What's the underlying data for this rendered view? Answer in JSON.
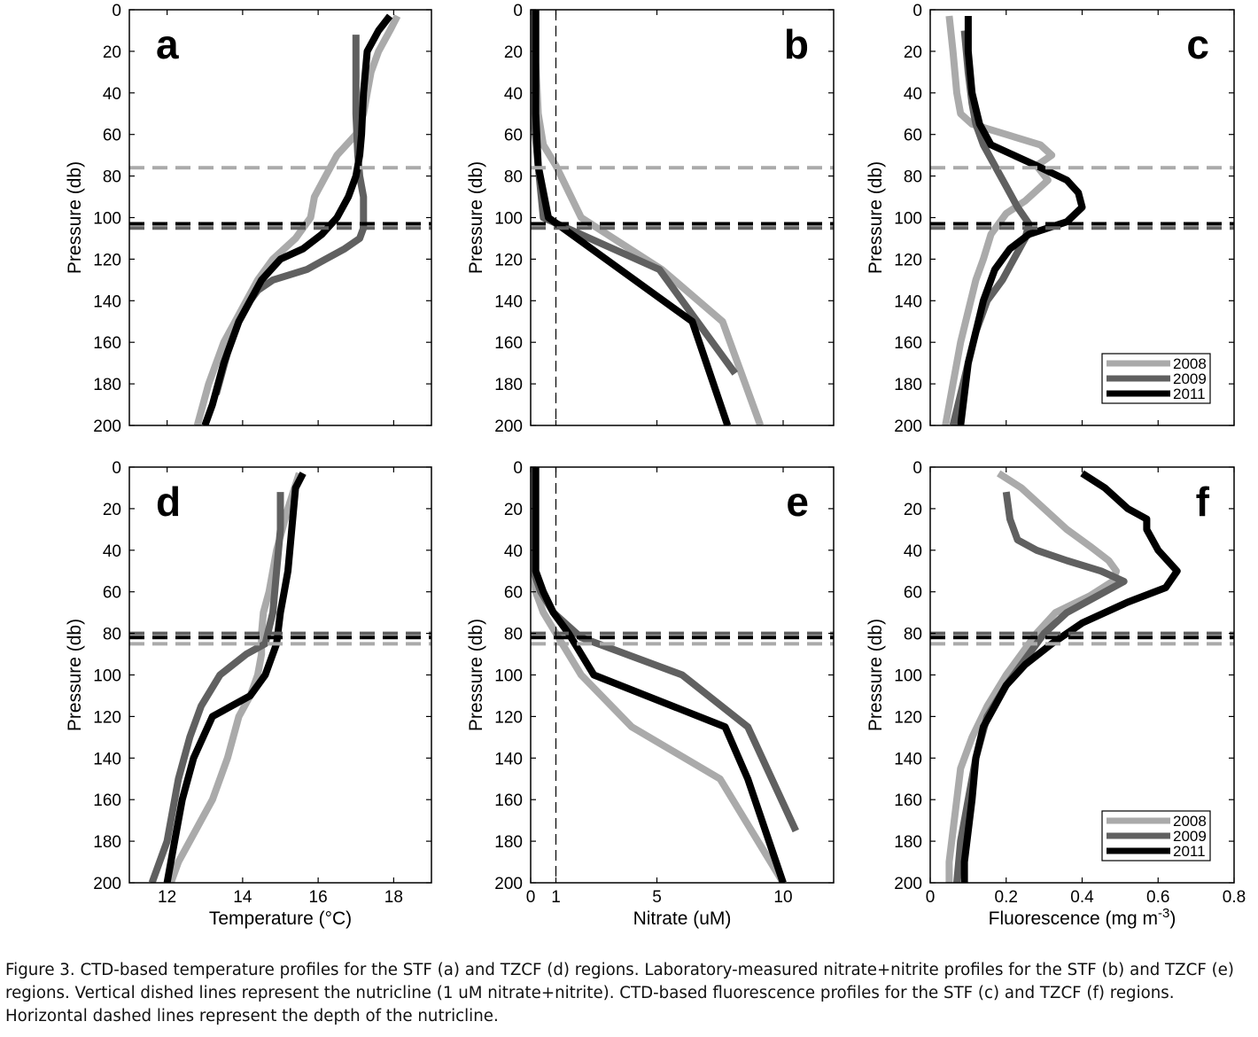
{
  "colors": {
    "y2008": "#aaaaaa",
    "y2009": "#606060",
    "y2011": "#000000"
  },
  "legend": [
    "2008",
    "2009",
    "2011"
  ],
  "caption": "Figure 3. CTD-based temperature profiles for the STF (a) and TZCF (d) regions. Laboratory-measured nitrate+nitrite profiles for the STF (b) and TZCF (e) regions. Vertical dished lines represent the nutricline (1 uM nitrate+nitrite). CTD-based fluorescence profiles for the STF (c) and TZCF (f) regions. Horizontal dashed lines represent the depth of the nutricline.",
  "chart_data": [
    {
      "panel": "a",
      "type": "line",
      "xlabel": "",
      "ylabel": "Pressure (db)",
      "xlim": [
        11,
        19
      ],
      "ylim": [
        200,
        0
      ],
      "xticks": [
        12,
        14,
        16,
        18
      ],
      "show_xticklabels": false,
      "yticks": [
        0,
        20,
        40,
        60,
        80,
        100,
        120,
        140,
        160,
        180,
        200
      ],
      "series": [
        {
          "name": "2008",
          "x": [
            18.1,
            17.9,
            17.6,
            17.4,
            17.3,
            17.2,
            17.0,
            16.5,
            16.2,
            15.9,
            15.8,
            15.4,
            14.8,
            14.4,
            14.1,
            13.8,
            13.5,
            13.1,
            12.8
          ],
          "y": [
            3,
            10,
            20,
            30,
            40,
            50,
            60,
            70,
            80,
            90,
            100,
            110,
            120,
            130,
            140,
            150,
            160,
            180,
            200
          ]
        },
        {
          "name": "2009",
          "x": [
            17.0,
            17.0,
            17.0,
            17.05,
            17.1,
            17.2,
            17.2,
            17.2,
            17.1,
            16.7,
            16.2,
            15.7,
            14.8,
            14.4,
            14.2,
            13.9,
            13.6,
            13.3
          ],
          "y": [
            12,
            30,
            50,
            70,
            80,
            90,
            100,
            105,
            110,
            115,
            120,
            125,
            130,
            135,
            140,
            150,
            165,
            185
          ]
        },
        {
          "name": "2011",
          "x": [
            17.9,
            17.6,
            17.3,
            17.2,
            17.15,
            17.1,
            17.0,
            16.8,
            16.5,
            16.1,
            15.6,
            15.0,
            14.5,
            14.2,
            13.9,
            13.5,
            13.2,
            13.0
          ],
          "y": [
            3,
            10,
            20,
            40,
            60,
            70,
            80,
            90,
            100,
            108,
            115,
            120,
            130,
            140,
            150,
            170,
            190,
            200
          ]
        }
      ],
      "hlines": [
        {
          "name": "2008",
          "y": 76
        },
        {
          "name": "2009",
          "y": 105
        },
        {
          "name": "2011",
          "y": 103
        }
      ]
    },
    {
      "panel": "b",
      "type": "line",
      "xlabel": "",
      "ylabel": "Pressure (db)",
      "xlim": [
        0,
        12
      ],
      "ylim": [
        200,
        0
      ],
      "xticks": [
        0,
        1,
        5,
        10
      ],
      "show_xticklabels": false,
      "yticks": [
        0,
        20,
        40,
        60,
        80,
        100,
        120,
        140,
        160,
        180,
        200
      ],
      "vline": 1,
      "series": [
        {
          "name": "2008",
          "x": [
            0.2,
            0.2,
            0.3,
            0.5,
            1.0,
            2.0,
            5.2,
            7.6,
            9.1
          ],
          "y": [
            0,
            25,
            50,
            65,
            75,
            100,
            125,
            150,
            200
          ]
        },
        {
          "name": "2009",
          "x": [
            0.1,
            0.1,
            0.1,
            0.3,
            0.5,
            5.1,
            8.1
          ],
          "y": [
            0,
            25,
            50,
            75,
            100,
            125,
            175
          ]
        },
        {
          "name": "2011",
          "x": [
            0.2,
            0.2,
            0.2,
            0.3,
            0.7,
            6.4,
            7.8
          ],
          "y": [
            0,
            25,
            50,
            75,
            100,
            150,
            200
          ]
        }
      ],
      "hlines": [
        {
          "name": "2008",
          "y": 76
        },
        {
          "name": "2009",
          "y": 105
        },
        {
          "name": "2011",
          "y": 103
        }
      ]
    },
    {
      "panel": "c",
      "type": "line",
      "xlabel": "",
      "ylabel": "Pressure (db)",
      "xlim": [
        0,
        0.8
      ],
      "ylim": [
        200,
        0
      ],
      "xticks": [
        0,
        0.2,
        0.4,
        0.6,
        0.8
      ],
      "show_xticklabels": false,
      "yticks": [
        0,
        20,
        40,
        60,
        80,
        100,
        120,
        140,
        160,
        180,
        200
      ],
      "legend_position": "lower-right",
      "series": [
        {
          "name": "2008",
          "x": [
            0.05,
            0.06,
            0.07,
            0.08,
            0.11,
            0.2,
            0.29,
            0.32,
            0.28,
            0.31,
            0.25,
            0.2,
            0.16,
            0.14,
            0.12,
            0.1,
            0.08,
            0.06,
            0.04
          ],
          "y": [
            3,
            20,
            40,
            50,
            55,
            60,
            65,
            70,
            75,
            82,
            92,
            98,
            108,
            120,
            130,
            145,
            160,
            180,
            200
          ]
        },
        {
          "name": "2009",
          "x": [
            0.09,
            0.1,
            0.11,
            0.12,
            0.14,
            0.17,
            0.2,
            0.23,
            0.26,
            0.25,
            0.22,
            0.19,
            0.15,
            0.12,
            0.1,
            0.08,
            0.06
          ],
          "y": [
            10,
            30,
            45,
            55,
            65,
            75,
            85,
            95,
            103,
            110,
            120,
            130,
            140,
            155,
            170,
            185,
            200
          ]
        },
        {
          "name": "2011",
          "x": [
            0.1,
            0.1,
            0.11,
            0.13,
            0.16,
            0.28,
            0.36,
            0.39,
            0.4,
            0.36,
            0.26,
            0.21,
            0.17,
            0.14,
            0.12,
            0.1,
            0.09,
            0.08
          ],
          "y": [
            3,
            20,
            40,
            55,
            65,
            75,
            82,
            88,
            95,
            102,
            108,
            115,
            125,
            140,
            155,
            170,
            185,
            200
          ]
        }
      ],
      "hlines": [
        {
          "name": "2008",
          "y": 76
        },
        {
          "name": "2009",
          "y": 105
        },
        {
          "name": "2011",
          "y": 103
        }
      ]
    },
    {
      "panel": "d",
      "type": "line",
      "xlabel": "Temperature (°C)",
      "ylabel": "Pressure (db)",
      "xlim": [
        11,
        19
      ],
      "ylim": [
        200,
        0
      ],
      "xticks": [
        12,
        14,
        16,
        18
      ],
      "show_xticklabels": true,
      "yticks": [
        0,
        20,
        40,
        60,
        80,
        100,
        120,
        140,
        160,
        180,
        200
      ],
      "series": [
        {
          "name": "2008",
          "x": [
            15.5,
            15.2,
            14.9,
            14.7,
            14.55,
            14.5,
            14.5,
            14.4,
            14.2,
            13.9,
            13.6,
            13.2,
            12.9,
            12.6,
            12.3,
            12.1
          ],
          "y": [
            3,
            20,
            40,
            60,
            70,
            80,
            90,
            100,
            110,
            120,
            140,
            160,
            170,
            180,
            190,
            200
          ]
        },
        {
          "name": "2009",
          "x": [
            15.0,
            15.0,
            14.9,
            14.8,
            14.6,
            14.1,
            13.4,
            12.9,
            12.6,
            12.3,
            12.0,
            11.6
          ],
          "y": [
            12,
            30,
            50,
            70,
            85,
            90,
            100,
            115,
            130,
            150,
            180,
            200
          ]
        },
        {
          "name": "2011",
          "x": [
            15.6,
            15.4,
            15.3,
            15.2,
            15.1,
            15.0,
            14.9,
            14.6,
            14.2,
            13.2,
            12.7,
            12.4,
            12.2,
            12.0
          ],
          "y": [
            3,
            10,
            30,
            50,
            60,
            70,
            85,
            100,
            110,
            120,
            140,
            160,
            180,
            200
          ]
        }
      ],
      "hlines": [
        {
          "name": "2008",
          "y": 85
        },
        {
          "name": "2009",
          "y": 80
        },
        {
          "name": "2011",
          "y": 82
        }
      ]
    },
    {
      "panel": "e",
      "type": "line",
      "xlabel": "Nitrate (uM)",
      "ylabel": "Pressure (db)",
      "xlim": [
        0,
        12
      ],
      "ylim": [
        200,
        0
      ],
      "xticks": [
        0,
        1,
        5,
        10
      ],
      "show_xticklabels": true,
      "yticks": [
        0,
        20,
        40,
        60,
        80,
        100,
        120,
        140,
        160,
        180,
        200
      ],
      "vline": 1,
      "series": [
        {
          "name": "2008",
          "x": [
            0.1,
            0.1,
            0.1,
            0.2,
            0.5,
            1.0,
            2.0,
            4.0,
            7.5,
            10.0
          ],
          "y": [
            0,
            25,
            50,
            60,
            70,
            80,
            100,
            125,
            150,
            200
          ]
        },
        {
          "name": "2009",
          "x": [
            0.1,
            0.1,
            0.1,
            0.4,
            0.9,
            2.0,
            6.0,
            8.6,
            10.5
          ],
          "y": [
            0,
            25,
            50,
            60,
            70,
            82,
            100,
            125,
            175
          ]
        },
        {
          "name": "2011",
          "x": [
            0.2,
            0.2,
            0.2,
            0.5,
            0.9,
            1.5,
            2.5,
            7.7,
            8.6,
            10.0
          ],
          "y": [
            0,
            25,
            50,
            60,
            70,
            80,
            100,
            125,
            150,
            200
          ]
        }
      ],
      "hlines": [
        {
          "name": "2008",
          "y": 85
        },
        {
          "name": "2009",
          "y": 80
        },
        {
          "name": "2011",
          "y": 82
        }
      ]
    },
    {
      "panel": "f",
      "type": "line",
      "xlabel": "Fluorescence (mg m",
      "xlabel_sup": "-3",
      "xlabel_end": ")",
      "ylabel": "Pressure (db)",
      "xlim": [
        0,
        0.8
      ],
      "ylim": [
        200,
        0
      ],
      "xticks": [
        0,
        0.2,
        0.4,
        0.6,
        0.8
      ],
      "show_xticklabels": true,
      "yticks": [
        0,
        20,
        40,
        60,
        80,
        100,
        120,
        140,
        160,
        180,
        200
      ],
      "legend_position": "lower-right",
      "series": [
        {
          "name": "2008",
          "x": [
            0.18,
            0.24,
            0.3,
            0.36,
            0.42,
            0.47,
            0.49,
            0.48,
            0.42,
            0.33,
            0.28,
            0.24,
            0.2,
            0.15,
            0.11,
            0.08,
            0.07,
            0.06,
            0.05,
            0.05
          ],
          "y": [
            3,
            10,
            20,
            30,
            38,
            45,
            50,
            55,
            62,
            70,
            80,
            90,
            100,
            115,
            130,
            145,
            160,
            175,
            190,
            200
          ]
        },
        {
          "name": "2009",
          "x": [
            0.2,
            0.21,
            0.23,
            0.28,
            0.36,
            0.45,
            0.51,
            0.44,
            0.36,
            0.3,
            0.26,
            0.2,
            0.15,
            0.12,
            0.1,
            0.08,
            0.07
          ],
          "y": [
            12,
            25,
            35,
            40,
            45,
            50,
            55,
            62,
            70,
            80,
            90,
            105,
            120,
            140,
            160,
            180,
            200
          ]
        },
        {
          "name": "2011",
          "x": [
            0.4,
            0.46,
            0.52,
            0.57,
            0.57,
            0.6,
            0.65,
            0.62,
            0.52,
            0.4,
            0.32,
            0.25,
            0.2,
            0.17,
            0.14,
            0.12,
            0.11,
            0.1,
            0.09,
            0.09
          ],
          "y": [
            3,
            10,
            20,
            25,
            30,
            40,
            50,
            58,
            65,
            75,
            85,
            95,
            105,
            115,
            125,
            140,
            160,
            175,
            190,
            200
          ]
        }
      ],
      "hlines": [
        {
          "name": "2008",
          "y": 85
        },
        {
          "name": "2009",
          "y": 80
        },
        {
          "name": "2011",
          "y": 82
        }
      ]
    }
  ]
}
